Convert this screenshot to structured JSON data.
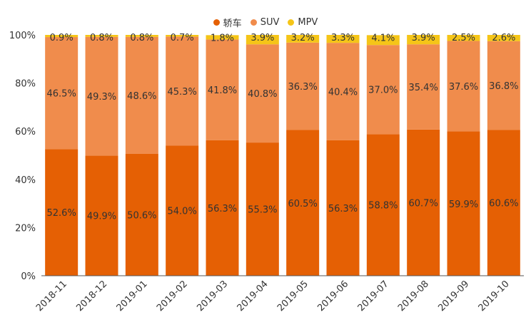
{
  "chart_data": {
    "type": "bar",
    "stacked": true,
    "categories": [
      "2018-11",
      "2018-12",
      "2019-01",
      "2019-02",
      "2019-03",
      "2019-04",
      "2019-05",
      "2019-06",
      "2019-07",
      "2019-08",
      "2019-09",
      "2019-10"
    ],
    "series": [
      {
        "name": "轿车",
        "color": "#e56004",
        "values": [
          52.6,
          49.9,
          50.6,
          54.0,
          56.3,
          55.3,
          60.5,
          56.3,
          58.8,
          60.7,
          59.9,
          60.6
        ],
        "labels": [
          "52.6%",
          "49.9%",
          "50.6%",
          "54.0%",
          "56.3%",
          "55.3%",
          "60.5%",
          "56.3%",
          "58.8%",
          "60.7%",
          "59.9%",
          "60.6%"
        ]
      },
      {
        "name": "SUV",
        "color": "#f08c4c",
        "values": [
          46.5,
          49.3,
          48.6,
          45.3,
          41.8,
          40.8,
          36.3,
          40.4,
          37.0,
          35.4,
          37.6,
          36.8
        ],
        "labels": [
          "46.5%",
          "49.3%",
          "48.6%",
          "45.3%",
          "41.8%",
          "40.8%",
          "36.3%",
          "40.4%",
          "37.0%",
          "35.4%",
          "37.6%",
          "36.8%"
        ]
      },
      {
        "name": "MPV",
        "color": "#f5c518",
        "values": [
          0.9,
          0.8,
          0.8,
          0.7,
          1.8,
          3.9,
          3.2,
          3.3,
          4.1,
          3.9,
          2.5,
          2.6
        ],
        "labels": [
          "0.9%",
          "0.8%",
          "0.8%",
          "0.7%",
          "1.8%",
          "3.9%",
          "3.2%",
          "3.3%",
          "4.1%",
          "3.9%",
          "2.5%",
          "2.6%"
        ]
      }
    ],
    "ylim": [
      0,
      100
    ],
    "yticks": [
      "0%",
      "20%",
      "40%",
      "60%",
      "80%",
      "100%"
    ],
    "ytick_values": [
      0,
      20,
      40,
      60,
      80,
      100
    ],
    "legend_position": "top-center",
    "grid": false
  }
}
